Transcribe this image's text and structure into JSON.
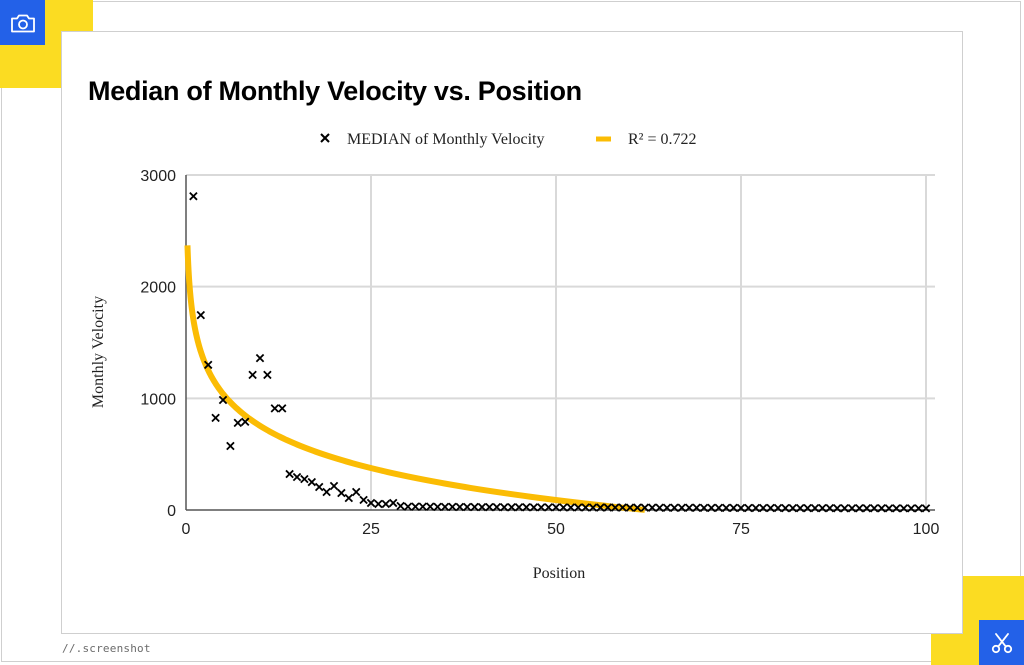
{
  "frame": {
    "footer_text": "//.screenshot",
    "corner_icons": [
      "camera-icon",
      "scissors-icon"
    ],
    "colors": {
      "accent_yellow": "#fbdc22",
      "accent_blue": "#2361e8"
    }
  },
  "chart_data": {
    "type": "scatter",
    "title": "Median of Monthly Velocity vs. Position",
    "xlabel": "Position",
    "ylabel": "Monthly Velocity",
    "xlim": [
      0,
      100
    ],
    "ylim": [
      0,
      3000
    ],
    "x_ticks": [
      "0",
      "25",
      "50",
      "75",
      "100"
    ],
    "y_ticks": [
      "0",
      "1000",
      "2000",
      "3000"
    ],
    "x_tick_values": [
      0,
      25,
      50,
      75,
      100
    ],
    "y_tick_values": [
      0,
      1000,
      2000,
      3000
    ],
    "grid": true,
    "legend_position": "top-center",
    "series": [
      {
        "name": "MEDIAN of Monthly Velocity",
        "marker": "x",
        "color": "#000000",
        "x": [
          1,
          2,
          3,
          4,
          5,
          6,
          7,
          8,
          9,
          10,
          11,
          12,
          13,
          14,
          15,
          16,
          17,
          18,
          19,
          20,
          21,
          22,
          23,
          24,
          25,
          26,
          27,
          28,
          29,
          30,
          31,
          32,
          33,
          34,
          35,
          36,
          37,
          38,
          39,
          40,
          41,
          42,
          43,
          44,
          45,
          46,
          47,
          48,
          49,
          50,
          51,
          52,
          53,
          54,
          55,
          56,
          57,
          58,
          59,
          60,
          61,
          62,
          63,
          64,
          65,
          66,
          67,
          68,
          69,
          70,
          71,
          72,
          73,
          74,
          75,
          76,
          77,
          78,
          79,
          80,
          81,
          82,
          83,
          84,
          85,
          86,
          87,
          88,
          89,
          90,
          91,
          92,
          93,
          94,
          95,
          96,
          97,
          98,
          99,
          100
        ],
        "y": [
          2810,
          1745,
          1300,
          825,
          985,
          573,
          780,
          790,
          1210,
          1360,
          1210,
          910,
          910,
          322,
          295,
          277,
          250,
          206,
          161,
          215,
          152,
          107,
          161,
          90,
          63,
          54,
          54,
          63,
          36,
          30,
          30,
          30,
          30,
          28,
          28,
          28,
          27,
          27,
          27,
          26,
          26,
          26,
          25,
          25,
          25,
          25,
          24,
          24,
          24,
          24,
          23,
          23,
          23,
          23,
          22,
          22,
          22,
          22,
          22,
          21,
          21,
          21,
          21,
          20,
          20,
          20,
          20,
          20,
          20,
          19,
          19,
          19,
          19,
          19,
          18,
          18,
          18,
          18,
          18,
          18,
          17,
          17,
          17,
          17,
          17,
          17,
          17,
          16,
          16,
          16,
          16,
          16,
          16,
          16,
          15,
          15,
          15,
          15,
          15,
          15
        ]
      },
      {
        "name": "R² = 0.722",
        "type": "logarithmic-trendline",
        "color": "#fbbc04",
        "equation": {
          "a": 1705,
          "b": 413
        },
        "x_range": [
          0.2,
          62
        ]
      }
    ]
  }
}
